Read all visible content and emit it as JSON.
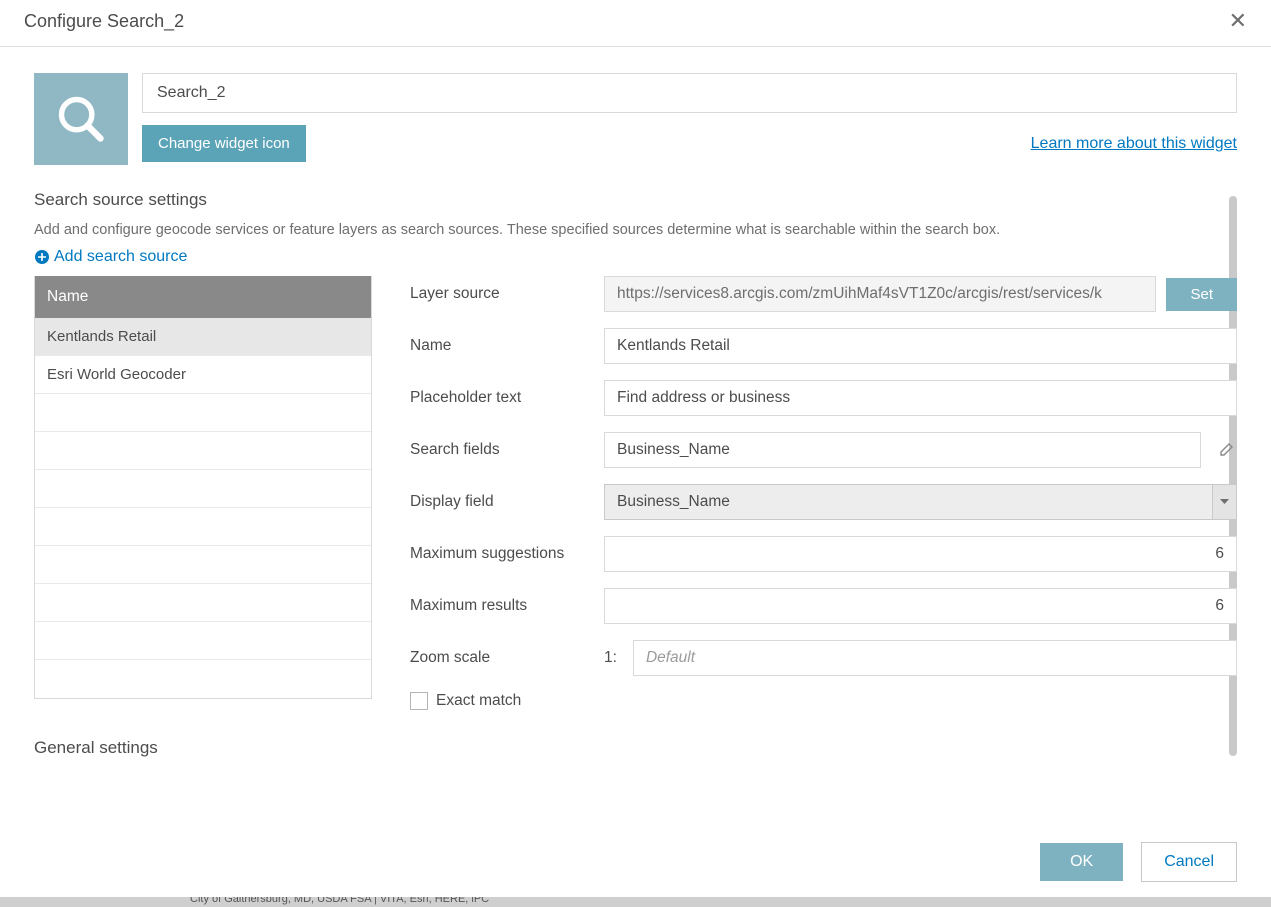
{
  "dialog": {
    "title": "Configure Search_2",
    "widget_name": "Search_2",
    "change_icon_btn": "Change widget icon",
    "learn_more": "Learn more about this widget"
  },
  "colors": {
    "teal": "#5ba3b7",
    "teal_light": "#7fb2c0",
    "icon_bg": "#8fb8c4",
    "link": "#0079c1",
    "header_gray": "#898989",
    "border": "#d9d9d9"
  },
  "search_sources": {
    "heading": "Search source settings",
    "description": "Add and configure geocode services or feature layers as search sources. These specified sources determine what is searchable within the search box.",
    "add_link": "Add search source",
    "col_header": "Name",
    "rows": [
      {
        "label": "Kentlands Retail",
        "selected": true
      },
      {
        "label": "Esri World Geocoder",
        "selected": false
      }
    ],
    "empty_rows": 8
  },
  "detail": {
    "layer_source_label": "Layer source",
    "layer_source_value": "https://services8.arcgis.com/zmUihMaf4sVT1Z0c/arcgis/rest/services/k",
    "set_btn": "Set",
    "name_label": "Name",
    "name_value": "Kentlands Retail",
    "placeholder_label": "Placeholder text",
    "placeholder_value": "Find address or business",
    "search_fields_label": "Search fields",
    "search_fields_value": "Business_Name",
    "display_field_label": "Display field",
    "display_field_value": "Business_Name",
    "max_sugg_label": "Maximum suggestions",
    "max_sugg_value": "6",
    "max_results_label": "Maximum results",
    "max_results_value": "6",
    "zoom_label": "Zoom scale",
    "zoom_prefix": "1:",
    "zoom_placeholder": "Default",
    "exact_match_label": "Exact match"
  },
  "general": {
    "heading": "General settings"
  },
  "footer": {
    "ok": "OK",
    "cancel": "Cancel"
  },
  "bg_text": "City of Gaithersburg, MD, USDA FSA | VITA, Esri, HERE, iPC"
}
